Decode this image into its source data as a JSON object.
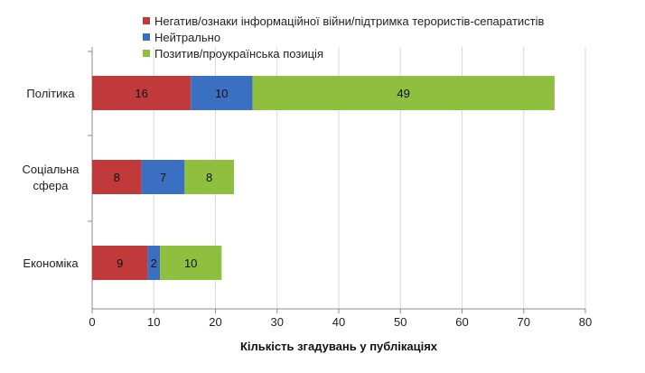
{
  "chart_data": {
    "type": "bar",
    "orientation": "horizontal",
    "stacked": true,
    "categories": [
      "Політика",
      "Соціальна сфера",
      "Економіка"
    ],
    "category_lines": [
      [
        "Політика"
      ],
      [
        "Соціальна",
        "сфера"
      ],
      [
        "Економіка"
      ]
    ],
    "series": [
      {
        "name": "Негатив/ознаки інформаційної війни/підтримка терористів-сепаратистів",
        "color": "#c0393b",
        "values": [
          16,
          8,
          9
        ]
      },
      {
        "name": "Нейтрально",
        "color": "#3a6fc2",
        "values": [
          10,
          7,
          2
        ]
      },
      {
        "name": "Позитив/проукраїнська позиція",
        "color": "#8fbf3e",
        "values": [
          49,
          8,
          10
        ]
      }
    ],
    "xlabel": "Кількість згадувань у публікаціях",
    "xlim": [
      0,
      80
    ],
    "xticks": [
      0,
      10,
      20,
      30,
      40,
      50,
      60,
      70,
      80
    ],
    "grid": true,
    "legend_position": "top"
  }
}
